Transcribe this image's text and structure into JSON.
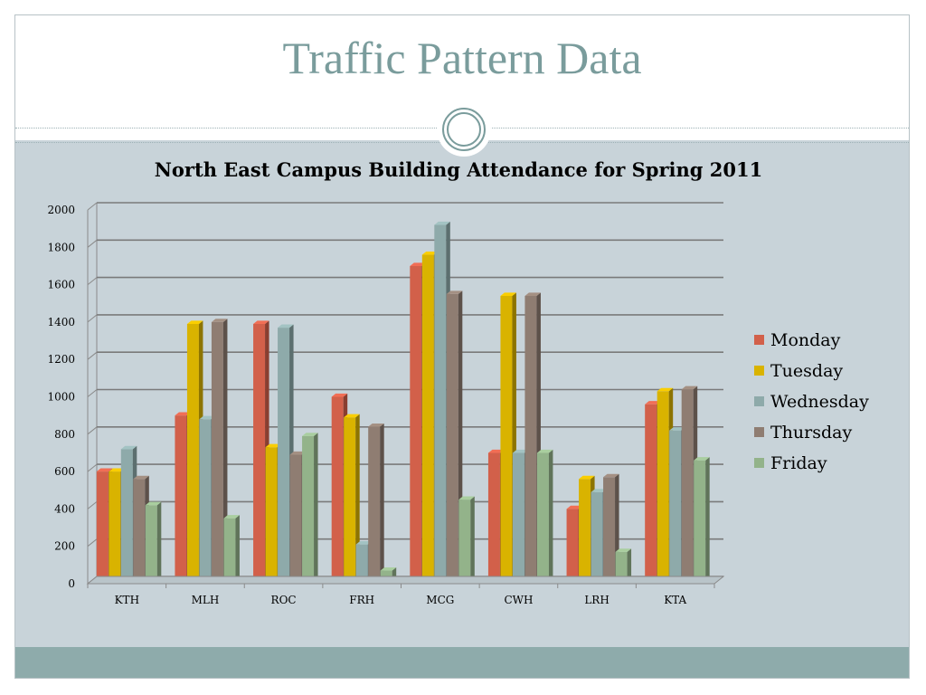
{
  "slide": {
    "title": "Traffic Pattern Data"
  },
  "chart_data": {
    "type": "bar",
    "title": "North East Campus Building Attendance for Spring 2011",
    "categories": [
      "KTH",
      "MLH",
      "ROC",
      "FRH",
      "MCG",
      "CWH",
      "LRH",
      "KTA"
    ],
    "series": [
      {
        "name": "Monday",
        "color": "#d2604a",
        "values": [
          600,
          900,
          1390,
          1000,
          1700,
          700,
          400,
          960
        ]
      },
      {
        "name": "Tuesday",
        "color": "#d9b300",
        "values": [
          600,
          1390,
          730,
          890,
          1760,
          1540,
          560,
          1030
        ]
      },
      {
        "name": "Wednesday",
        "color": "#8eaaaa",
        "values": [
          720,
          880,
          1370,
          210,
          1920,
          700,
          490,
          820
        ]
      },
      {
        "name": "Thursday",
        "color": "#8f7d72",
        "values": [
          560,
          1400,
          690,
          840,
          1550,
          1540,
          570,
          1040
        ]
      },
      {
        "name": "Friday",
        "color": "#93b38a",
        "values": [
          420,
          350,
          790,
          70,
          450,
          700,
          170,
          660
        ]
      }
    ],
    "ylim": [
      0,
      2000
    ],
    "yticks": [
      "0",
      "200",
      "400",
      "600",
      "800",
      "1000",
      "1200",
      "1400",
      "1600",
      "1800",
      "2000"
    ],
    "grid": true,
    "legend_position": "right"
  }
}
